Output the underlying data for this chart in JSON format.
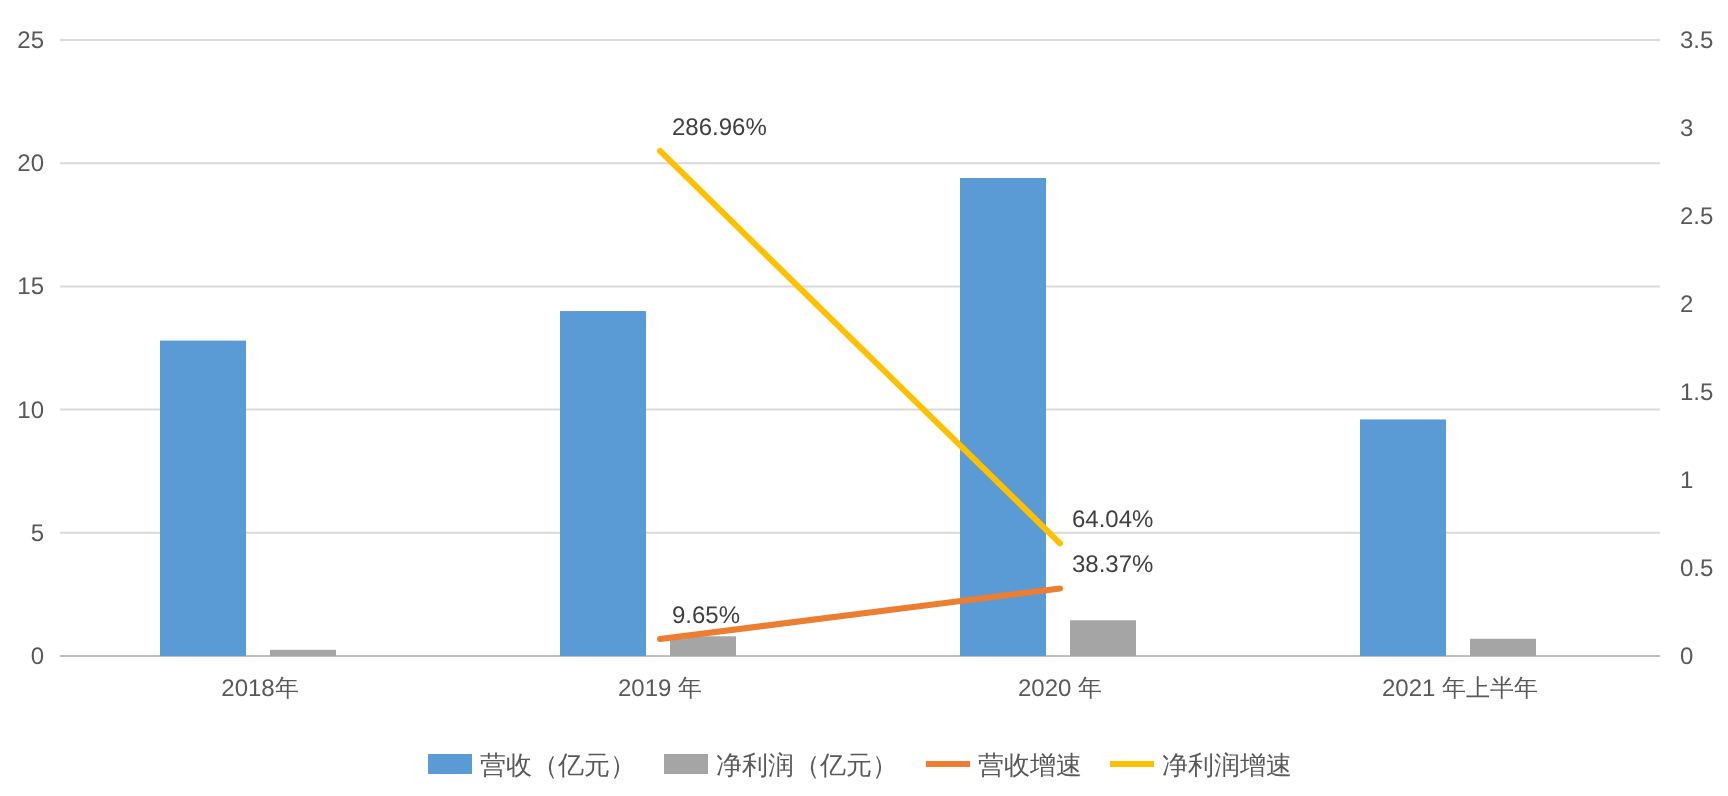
{
  "chart_data": {
    "type": "bar",
    "categories": [
      "2018年",
      "2019 年",
      "2020 年",
      "2021 年上半年"
    ],
    "series": [
      {
        "name": "营收（亿元）",
        "color": "#5b9bd5",
        "values": [
          12.8,
          14.0,
          19.4,
          9.6
        ]
      },
      {
        "name": "净利润（亿元）",
        "color": "#a5a5a5",
        "values": [
          0.25,
          0.8,
          1.45,
          0.7
        ]
      },
      {
        "name": "营收增速",
        "type": "line",
        "axis": "y2",
        "color": "#ed7d31",
        "values": [
          null,
          0.0965,
          0.3837,
          null
        ],
        "value_labels": [
          null,
          "9.65%",
          "38.37%",
          null
        ]
      },
      {
        "name": "净利润增速",
        "type": "line",
        "axis": "y2",
        "color": "#ffc000",
        "values": [
          null,
          2.8696,
          0.6404,
          null
        ],
        "value_labels": [
          null,
          "286.96%",
          "64.04%",
          null
        ]
      }
    ],
    "ylim": [
      0,
      25
    ],
    "yticks": [
      0,
      5,
      10,
      15,
      20,
      25
    ],
    "y2lim": [
      0,
      3.5
    ],
    "y2ticks": [
      0,
      0.5,
      1,
      1.5,
      2,
      2.5,
      3,
      3.5
    ],
    "grid": "y",
    "legend": "bottom"
  }
}
